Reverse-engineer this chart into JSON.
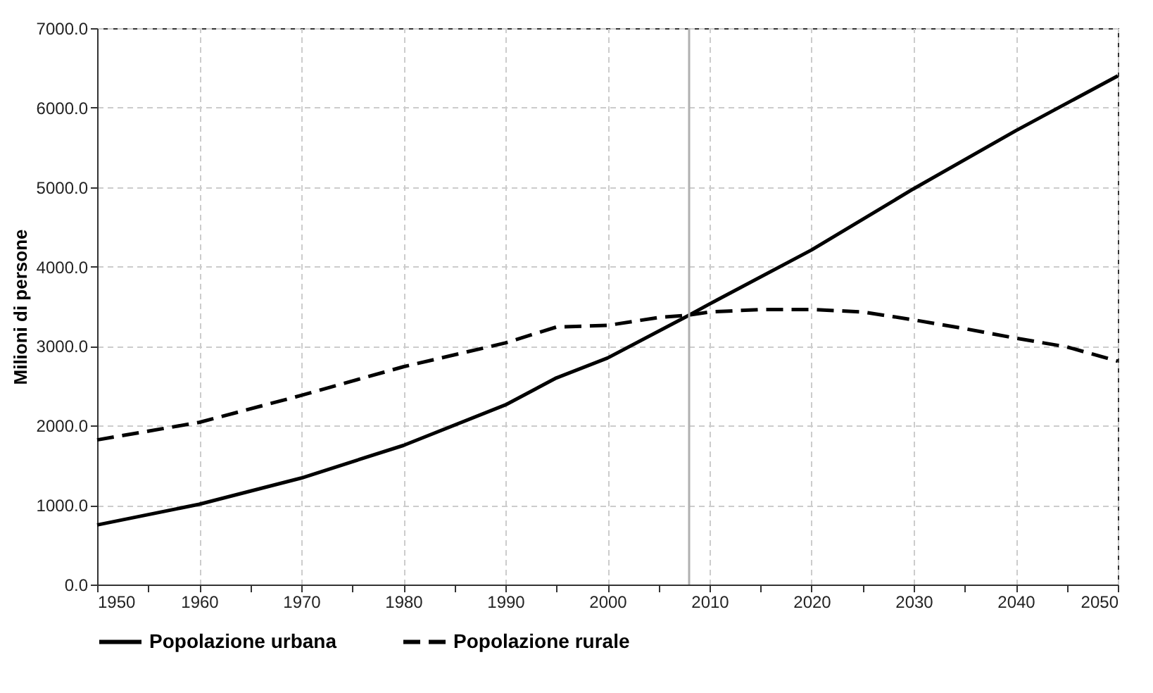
{
  "chart_data": {
    "type": "line",
    "ylabel": "Milioni di persone",
    "series": [
      {
        "name": "Popolazione urbana",
        "color": "#000000",
        "line_style": "solid",
        "x": [
          1950,
          1960,
          1970,
          1980,
          1990,
          1995,
          2000,
          2008,
          2010,
          2020,
          2030,
          2040,
          2050
        ],
        "values": [
          750,
          1010,
          1340,
          1750,
          2260,
          2600,
          2850,
          3390,
          3530,
          4210,
          4980,
          5710,
          6400
        ]
      },
      {
        "name": "Popolazione rurale",
        "color": "#000000",
        "line_style": "dashed",
        "x": [
          1950,
          1960,
          1970,
          1980,
          1990,
          1995,
          2000,
          2005,
          2008,
          2010,
          2015,
          2020,
          2025,
          2030,
          2035,
          2040,
          2045,
          2050
        ],
        "values": [
          1820,
          2040,
          2380,
          2740,
          3040,
          3240,
          3260,
          3360,
          3390,
          3430,
          3460,
          3460,
          3430,
          3330,
          3220,
          3100,
          2990,
          2810
        ]
      }
    ],
    "xlim": [
      1950,
      2050
    ],
    "xticks": [
      1950,
      {
        "value": 1955,
        "label": null
      },
      1960,
      {
        "value": 1965,
        "label": null
      },
      1970,
      {
        "value": 1975,
        "label": null
      },
      1980,
      {
        "value": 1985,
        "label": null
      },
      1990,
      {
        "value": 1995,
        "label": null
      },
      2000,
      {
        "value": 2005,
        "label": null
      },
      2010,
      {
        "value": 2015,
        "label": null
      },
      2020,
      {
        "value": 2025,
        "label": null
      },
      2030,
      {
        "value": 2035,
        "label": null
      },
      2040,
      {
        "value": 2045,
        "label": null
      },
      2050
    ],
    "ylim": [
      0,
      7000
    ],
    "yticks": [
      {
        "value": 0,
        "label": "0.0"
      },
      {
        "value": 1000,
        "label": "1000.0"
      },
      {
        "value": 2000,
        "label": "2000.0"
      },
      {
        "value": 3000,
        "label": "3000.0"
      },
      {
        "value": 4000,
        "label": "4000.0"
      },
      {
        "value": 5000,
        "label": "5000.0"
      },
      {
        "value": 6000,
        "label": "6000.0"
      },
      {
        "value": 7000,
        "label": "7000.0"
      }
    ],
    "ref_lines": [
      {
        "axis": "x",
        "value": 2008,
        "color": "#b0b0b0"
      }
    ],
    "grid": true,
    "legend": "bottom"
  }
}
